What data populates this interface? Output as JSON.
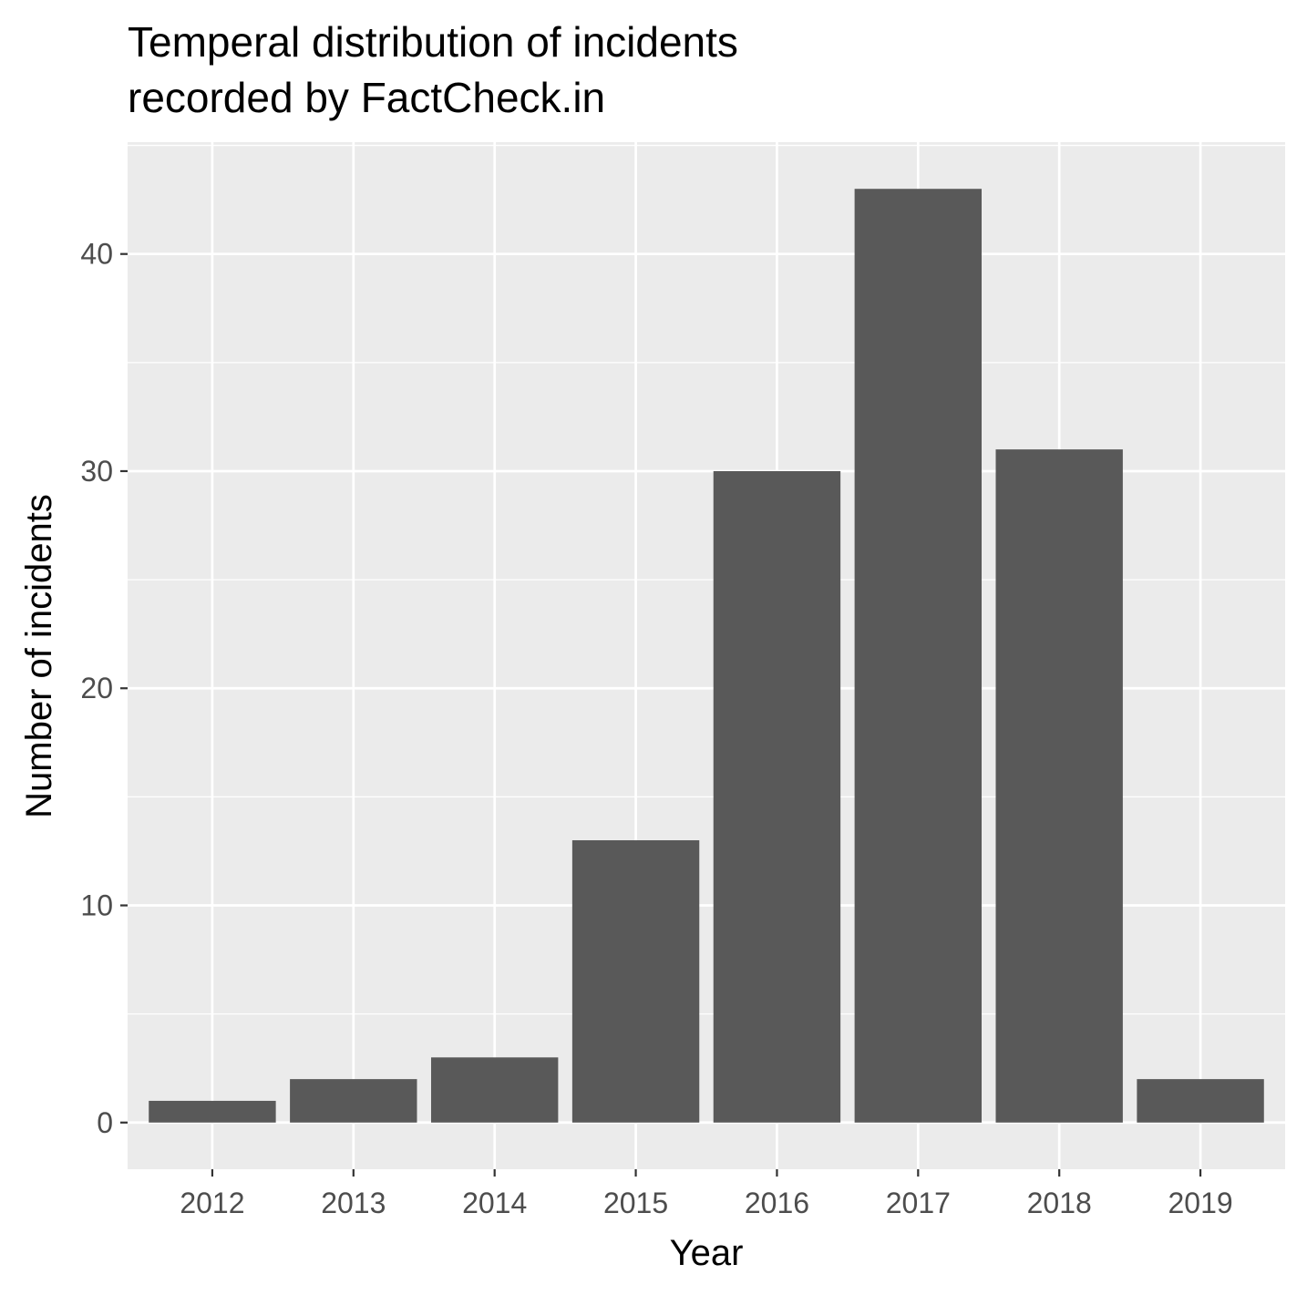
{
  "chart_data": {
    "type": "bar",
    "title_lines": [
      "Temperal distribution of incidents",
      "recorded by FactCheck.in"
    ],
    "xlabel": "Year",
    "ylabel": "Number of incidents",
    "categories": [
      "2012",
      "2013",
      "2014",
      "2015",
      "2016",
      "2017",
      "2018",
      "2019"
    ],
    "values": [
      1,
      2,
      3,
      13,
      30,
      43,
      31,
      2
    ],
    "yticks": [
      0,
      10,
      20,
      30,
      40
    ],
    "ylim": [
      -2.15,
      45.15
    ],
    "grid": true,
    "legend": "none",
    "colors": {
      "bar": "#595959",
      "panel": "#ebebeb",
      "grid": "#ffffff",
      "tick_text": "#4d4d4d",
      "tick_mark": "#333333"
    }
  }
}
